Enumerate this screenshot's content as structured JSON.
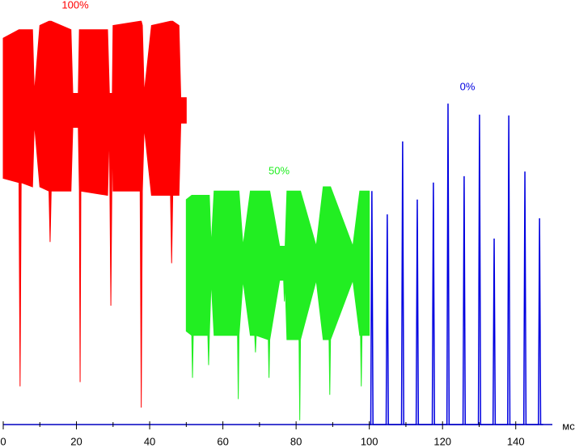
{
  "chart_data": {
    "type": "signal",
    "x_unit": "мс",
    "xlim": [
      0,
      150
    ],
    "ylim": [
      0,
      100
    ],
    "xticks": [
      0,
      20,
      40,
      60,
      80,
      100,
      120,
      140
    ],
    "xminorticks": [
      10,
      30,
      50,
      70,
      90,
      110,
      130
    ],
    "series": [
      {
        "name": "100%",
        "type": "band",
        "color": "#ff0000",
        "x": [
          0,
          4.3,
          4.6,
          4.9,
          8,
          8.5,
          10,
          12.5,
          12.8,
          13.1,
          18.5,
          19,
          20.5,
          20.8,
          21,
          21.2,
          28.5,
          29,
          29.4,
          29.8,
          30,
          37.4,
          37.7,
          38,
          38.5,
          40.5,
          45.7,
          46,
          46.3,
          48,
          48.5,
          50
        ],
        "upper": [
          91,
          93,
          93,
          93,
          93,
          78,
          94,
          95,
          95,
          95,
          93,
          78,
          78,
          93,
          93,
          93,
          93,
          78,
          78,
          78,
          94,
          95,
          95,
          94,
          78,
          94,
          95,
          95,
          95,
          94,
          77,
          77
        ],
        "lower": [
          58,
          57,
          9,
          57,
          56,
          71,
          56,
          55,
          43,
          55,
          55,
          70,
          70,
          55,
          10,
          55,
          54,
          70,
          28,
          70,
          55,
          55,
          4,
          55,
          70,
          54,
          54,
          38,
          54,
          54,
          71,
          71
        ]
      },
      {
        "name": "50%",
        "type": "band",
        "color": "#22ee22",
        "x": [
          50,
          51.5,
          51.7,
          51.9,
          55.9,
          56.1,
          56.3,
          56.8,
          57.6,
          64,
          64.2,
          64.4,
          65.5,
          67.5,
          68.7,
          68.9,
          69.1,
          72.4,
          72.6,
          72.8,
          75.5,
          76.6,
          76.8,
          77,
          77.5,
          80.8,
          81,
          81.2,
          85.5,
          87.4,
          89,
          89.2,
          89.4,
          95.5,
          97.4,
          97.6,
          97.8,
          98,
          100
        ],
        "upper": [
          53,
          54,
          54,
          54,
          54,
          54,
          54,
          42,
          55,
          55,
          55,
          55,
          42,
          55,
          55,
          55,
          55,
          55,
          55,
          55,
          42,
          42,
          42,
          42,
          55,
          55,
          55,
          55,
          42,
          56,
          56,
          56,
          56,
          42,
          55,
          55,
          55,
          55,
          55
        ],
        "lower": [
          22,
          21,
          11,
          21,
          21,
          14,
          21,
          34,
          21,
          21,
          6,
          21,
          34,
          21,
          21,
          17,
          21,
          20,
          11,
          20,
          34,
          34,
          29,
          34,
          20,
          20,
          1,
          20,
          34,
          20,
          20,
          7,
          20,
          34,
          21,
          21,
          9,
          21,
          21
        ]
      },
      {
        "name": "0%",
        "type": "line",
        "color": "#0000e0",
        "x": [
          100,
          100.4,
          100.7,
          101,
          104.6,
          104.9,
          105.2,
          108.8,
          109.1,
          109.4,
          112.8,
          113.1,
          113.4,
          117.2,
          117.5,
          117.8,
          121.2,
          121.5,
          121.8,
          125.6,
          125.9,
          126.2,
          129.8,
          130.1,
          130.4,
          133.8,
          134.1,
          134.4,
          137.8,
          138.1,
          138.4,
          142.2,
          142.5,
          142.8,
          146.2,
          146.5,
          146.8,
          147.5
        ],
        "values": [
          0,
          0,
          55,
          0,
          0,
          49.5,
          0,
          0,
          66.7,
          0,
          0,
          53,
          0,
          0,
          57,
          0,
          0,
          75.6,
          0,
          0,
          58.5,
          0,
          0,
          73,
          0,
          0,
          43.8,
          0,
          0,
          72.8,
          0,
          0,
          59.6,
          0,
          0,
          48.6,
          0,
          0
        ]
      }
    ]
  }
}
